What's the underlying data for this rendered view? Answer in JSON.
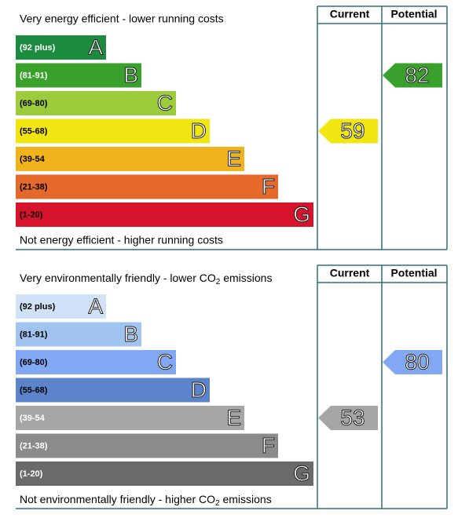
{
  "chart_data": [
    {
      "type": "rating",
      "top_label": "Very energy efficient - lower running costs",
      "bottom_label": "Not energy efficient - higher running costs",
      "column_headers": [
        "Current",
        "Potential"
      ],
      "band_labels": [
        "(92 plus)",
        "(81-91)",
        "(69-80)",
        "(55-68)",
        "(39-54",
        "(21-38)",
        "(1-20)"
      ],
      "letters": [
        "A",
        "B",
        "C",
        "D",
        "E",
        "F",
        "G"
      ],
      "colors": [
        "#1c8a3f",
        "#3aa02c",
        "#9ccb3b",
        "#f2e612",
        "#f0b31c",
        "#e5692a",
        "#d6122d"
      ],
      "text_colors": [
        "#ffffff",
        "#ffffff",
        "#000000",
        "#000000",
        "#000000",
        "#000000",
        "#000000"
      ],
      "current": 59,
      "potential": 82
    },
    {
      "type": "rating",
      "top_label": {
        "text": "Very environmentally friendly - lower CO",
        "sub": "2",
        "after": " emissions"
      },
      "bottom_label": {
        "text": "Not environmentally friendly - higher CO",
        "sub": "2",
        "after": " emissions"
      },
      "column_headers": [
        "Current",
        "Potential"
      ],
      "band_labels": [
        "(92 plus)",
        "(81-91)",
        "(69-80)",
        "(55-68)",
        "(39-54",
        "(21-38)",
        "(1-20)"
      ],
      "letters": [
        "A",
        "B",
        "C",
        "D",
        "E",
        "F",
        "G"
      ],
      "colors": [
        "#cfe2f7",
        "#a0c3ef",
        "#82a7f3",
        "#5b84cb",
        "#a5a5a5",
        "#8b8b8b",
        "#6a6a6a"
      ],
      "text_colors": [
        "#000000",
        "#000000",
        "#000000",
        "#000000",
        "#ffffff",
        "#ffffff",
        "#ffffff"
      ],
      "current": 53,
      "potential": 80
    }
  ]
}
